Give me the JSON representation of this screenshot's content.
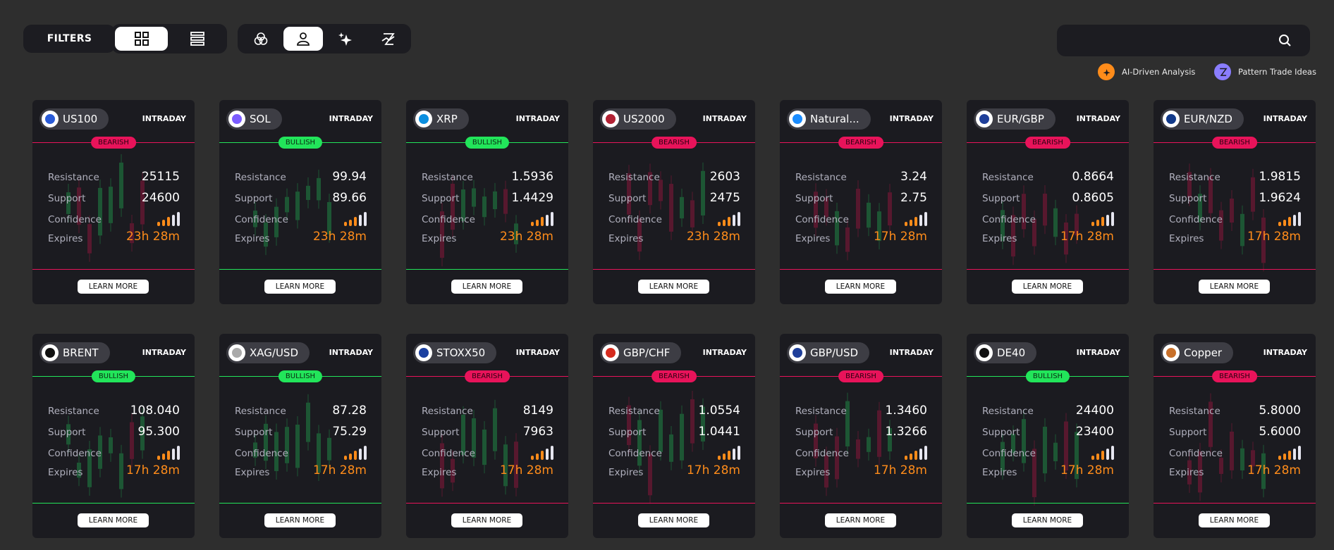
{
  "toolbar": {
    "filters": "FILTERS"
  },
  "legend": {
    "ai": "AI-Driven Analysis",
    "pattern": "Pattern Trade Ideas"
  },
  "labels": {
    "resistance": "Resistance",
    "support": "Support",
    "confidence": "Confidence",
    "expires": "Expires",
    "learn_more": "LEARN MORE"
  },
  "cards": [
    {
      "symbol": "US100",
      "timeframe": "INTRADAY",
      "sentiment": "BEARISH",
      "resistance": "25115",
      "support": "24600",
      "confidence": 3,
      "expires": "23h 28m"
    },
    {
      "symbol": "SOL",
      "timeframe": "INTRADAY",
      "sentiment": "BULLISH",
      "resistance": "99.94",
      "support": "89.66",
      "confidence": 3,
      "expires": "23h 28m"
    },
    {
      "symbol": "XRP",
      "timeframe": "INTRADAY",
      "sentiment": "BULLISH",
      "resistance": "1.5936",
      "support": "1.4429",
      "confidence": 3,
      "expires": "23h 28m"
    },
    {
      "symbol": "US2000",
      "timeframe": "INTRADAY",
      "sentiment": "BEARISH",
      "resistance": "2603",
      "support": "2475",
      "confidence": 3,
      "expires": "23h 28m"
    },
    {
      "symbol": "Natural...",
      "timeframe": "INTRADAY",
      "sentiment": "BEARISH",
      "resistance": "3.24",
      "support": "2.75",
      "confidence": 3,
      "expires": "17h 28m"
    },
    {
      "symbol": "EUR/GBP",
      "timeframe": "INTRADAY",
      "sentiment": "BEARISH",
      "resistance": "0.8664",
      "support": "0.8605",
      "confidence": 3,
      "expires": "17h 28m"
    },
    {
      "symbol": "EUR/NZD",
      "timeframe": "INTRADAY",
      "sentiment": "BEARISH",
      "resistance": "1.9815",
      "support": "1.9624",
      "confidence": 3,
      "expires": "17h 28m"
    },
    {
      "symbol": "BRENT",
      "timeframe": "INTRADAY",
      "sentiment": "BULLISH",
      "resistance": "108.040",
      "support": "95.300",
      "confidence": 3,
      "expires": "17h 28m"
    },
    {
      "symbol": "XAG/USD",
      "timeframe": "INTRADAY",
      "sentiment": "BULLISH",
      "resistance": "87.28",
      "support": "75.29",
      "confidence": 3,
      "expires": "17h 28m"
    },
    {
      "symbol": "STOXX50",
      "timeframe": "INTRADAY",
      "sentiment": "BEARISH",
      "resistance": "8149",
      "support": "7963",
      "confidence": 3,
      "expires": "17h 28m"
    },
    {
      "symbol": "GBP/CHF",
      "timeframe": "INTRADAY",
      "sentiment": "BEARISH",
      "resistance": "1.0554",
      "support": "1.0441",
      "confidence": 3,
      "expires": "17h 28m"
    },
    {
      "symbol": "GBP/USD",
      "timeframe": "INTRADAY",
      "sentiment": "BEARISH",
      "resistance": "1.3460",
      "support": "1.3266",
      "confidence": 3,
      "expires": "17h 28m"
    },
    {
      "symbol": "DE40",
      "timeframe": "INTRADAY",
      "sentiment": "BULLISH",
      "resistance": "24400",
      "support": "23400",
      "confidence": 3,
      "expires": "17h 28m"
    },
    {
      "symbol": "Copper",
      "timeframe": "INTRADAY",
      "sentiment": "BEARISH",
      "resistance": "5.8000",
      "support": "5.6000",
      "confidence": 3,
      "expires": "17h 28m"
    }
  ]
}
